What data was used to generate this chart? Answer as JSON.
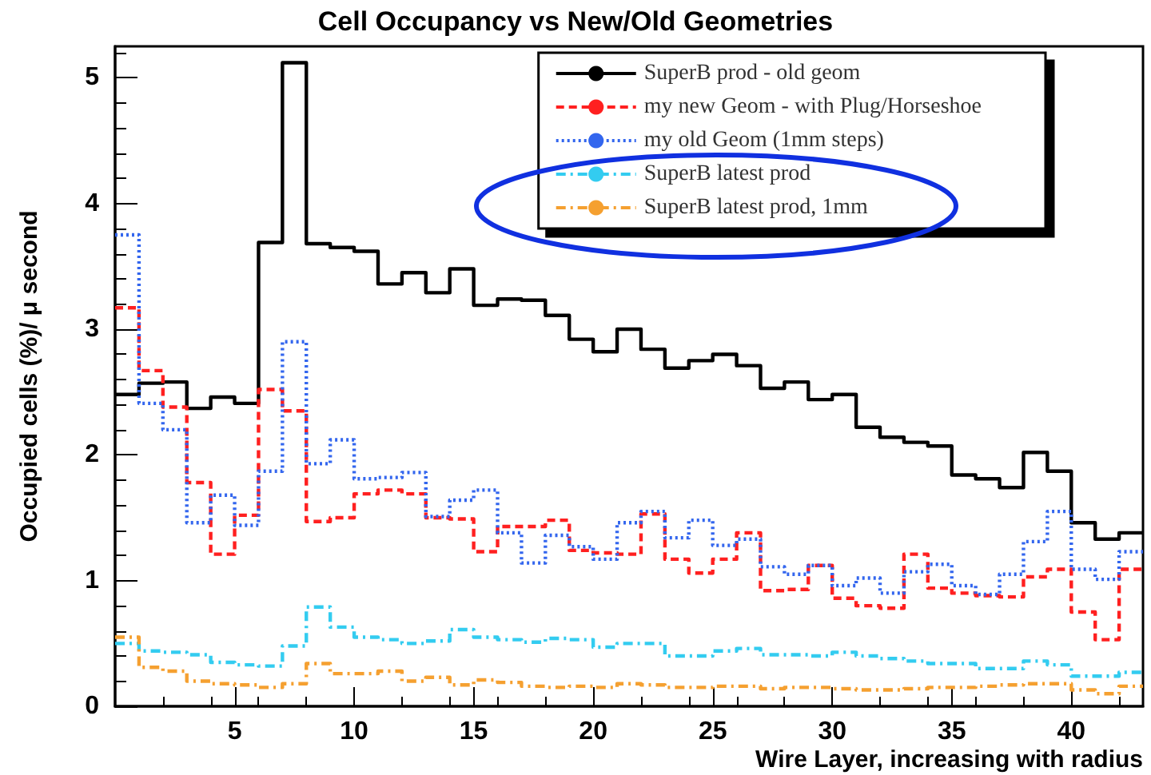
{
  "chart_data": {
    "type": "histogram",
    "title": "Cell Occupancy vs New/Old Geometries",
    "xlabel": "Wire Layer, increasing with radius",
    "ylabel": "Occupied cells (%)/ μ second",
    "bins": [
      0,
      1,
      2,
      3,
      4,
      5,
      6,
      7,
      8,
      9,
      10,
      11,
      12,
      13,
      14,
      15,
      16,
      17,
      18,
      19,
      20,
      21,
      22,
      23,
      24,
      25,
      26,
      27,
      28,
      29,
      30,
      31,
      32,
      33,
      34,
      35,
      36,
      37,
      38,
      39,
      40,
      41,
      42,
      43
    ],
    "xlim": [
      0,
      43
    ],
    "xticks": [
      5,
      10,
      15,
      20,
      25,
      30,
      35,
      40
    ],
    "ylim": [
      0,
      5.25
    ],
    "yticks": [
      0,
      1,
      2,
      3,
      4,
      5
    ],
    "grid": false,
    "legend": "top right",
    "series": [
      {
        "name": "SuperB prod - old geom",
        "color": "#000000",
        "line_style": "solid",
        "values": [
          2.48,
          2.57,
          2.58,
          2.37,
          2.46,
          2.41,
          3.69,
          5.12,
          3.68,
          3.65,
          3.62,
          3.36,
          3.45,
          3.29,
          3.48,
          3.19,
          3.24,
          3.23,
          3.11,
          2.92,
          2.82,
          3.0,
          2.84,
          2.69,
          2.75,
          2.8,
          2.71,
          2.53,
          2.58,
          2.44,
          2.48,
          2.22,
          2.14,
          2.1,
          2.07,
          1.84,
          1.81,
          1.74,
          2.02,
          1.87,
          1.46,
          1.33,
          1.38
        ]
      },
      {
        "name": "my new Geom - with Plug/Horseshoe",
        "color": "#ff2020",
        "line_style": "dashed",
        "values": [
          3.17,
          2.67,
          2.38,
          1.78,
          1.21,
          1.52,
          2.52,
          2.35,
          1.47,
          1.5,
          1.69,
          1.72,
          1.69,
          1.5,
          1.49,
          1.23,
          1.43,
          1.43,
          1.48,
          1.24,
          1.22,
          1.21,
          1.53,
          1.17,
          1.06,
          1.17,
          1.38,
          0.92,
          0.93,
          1.12,
          0.86,
          0.8,
          0.78,
          1.21,
          0.94,
          0.9,
          0.88,
          0.87,
          1.03,
          1.09,
          0.75,
          0.53,
          1.09
        ]
      },
      {
        "name": "my old Geom (1mm steps)",
        "color": "#3366ee",
        "line_style": "dotted",
        "values": [
          3.75,
          2.41,
          2.2,
          1.46,
          1.68,
          1.44,
          1.87,
          2.9,
          1.93,
          2.12,
          1.81,
          1.82,
          1.86,
          1.51,
          1.64,
          1.72,
          1.38,
          1.14,
          1.36,
          1.27,
          1.17,
          1.46,
          1.55,
          1.34,
          1.48,
          1.28,
          1.33,
          1.11,
          1.05,
          1.12,
          0.96,
          1.02,
          0.9,
          1.07,
          1.13,
          0.96,
          0.89,
          1.05,
          1.31,
          1.55,
          1.09,
          1.01,
          1.23
        ]
      },
      {
        "name": "SuperB latest prod",
        "color": "#33ccf0",
        "line_style": "dashdot",
        "values": [
          0.5,
          0.44,
          0.43,
          0.41,
          0.35,
          0.33,
          0.32,
          0.48,
          0.79,
          0.63,
          0.55,
          0.53,
          0.5,
          0.52,
          0.61,
          0.55,
          0.53,
          0.51,
          0.54,
          0.53,
          0.47,
          0.5,
          0.5,
          0.4,
          0.4,
          0.44,
          0.46,
          0.41,
          0.41,
          0.4,
          0.43,
          0.4,
          0.38,
          0.36,
          0.34,
          0.34,
          0.3,
          0.3,
          0.36,
          0.33,
          0.24,
          0.24,
          0.27
        ]
      },
      {
        "name": "SuperB latest prod, 1mm",
        "color": "#f5a030",
        "line_style": "dashdot",
        "values": [
          0.55,
          0.31,
          0.28,
          0.2,
          0.18,
          0.17,
          0.15,
          0.18,
          0.34,
          0.26,
          0.26,
          0.28,
          0.2,
          0.23,
          0.17,
          0.21,
          0.19,
          0.16,
          0.15,
          0.16,
          0.15,
          0.18,
          0.17,
          0.15,
          0.15,
          0.16,
          0.16,
          0.14,
          0.15,
          0.15,
          0.14,
          0.13,
          0.13,
          0.14,
          0.15,
          0.15,
          0.16,
          0.17,
          0.18,
          0.18,
          0.13,
          0.1,
          0.16
        ]
      }
    ]
  }
}
